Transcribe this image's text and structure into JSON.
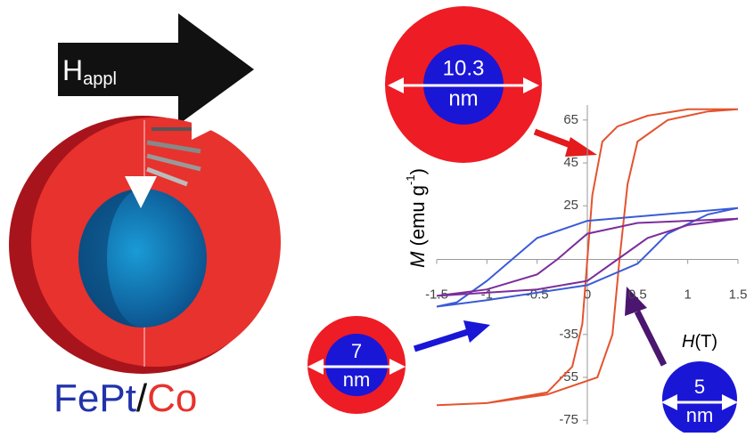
{
  "illustration": {
    "field_symbol": "H",
    "field_subscript": "appl",
    "core_material": "FePt",
    "separator": "/",
    "shell_material": "Co",
    "circles": [
      {
        "size": "10.3",
        "unit": "nm"
      },
      {
        "size": "7",
        "unit": "nm"
      },
      {
        "size": "5",
        "unit": "nm"
      }
    ]
  },
  "chart_data": {
    "type": "line",
    "y_label": {
      "symbol": "M",
      "text": "(emu g",
      "exponent": "-1",
      "close": ")"
    },
    "x_label": {
      "symbol": "H",
      "text": "(T)"
    },
    "xlim": [
      -1.5,
      1.5
    ],
    "xticks": [
      -1.5,
      -1,
      -0.5,
      0,
      0.5,
      1,
      1.5
    ],
    "ylim": [
      -77,
      72
    ],
    "yticks": [
      -75,
      -55,
      -35,
      25,
      45,
      65
    ],
    "series": [
      {
        "color": "#e4532f",
        "x": [
          1.5,
          1.0,
          0.6,
          0.3,
          0.15,
          0.05,
          0,
          -0.05,
          -0.15,
          -0.4,
          -1,
          -1.5,
          -1.5,
          -1,
          -0.4,
          0.1,
          0.25,
          0.32,
          0.4,
          0.5,
          0.8,
          1.2,
          1.5
        ],
        "values": [
          70,
          70,
          67,
          62,
          55,
          30,
          0,
          -30,
          -50,
          -62,
          -67,
          -68,
          -68,
          -67,
          -63,
          -55,
          -35,
          0,
          35,
          55,
          65,
          69,
          70
        ]
      },
      {
        "color": "#3a5bd6",
        "x": [
          1.5,
          0,
          -0.5,
          -1,
          -1.3,
          -1.5,
          -1.5,
          -1,
          0,
          0.5,
          0.8,
          1.2,
          1.5
        ],
        "values": [
          24,
          18,
          10,
          -10,
          -20,
          -22,
          -22,
          -19,
          -12,
          -2,
          12,
          21,
          24
        ]
      },
      {
        "color": "#7b2d9b",
        "x": [
          1.5,
          0.5,
          0,
          -0.3,
          -0.5,
          -1,
          -1.5,
          -1.5,
          -0.5,
          0,
          0.3,
          0.6,
          1,
          1.5
        ],
        "values": [
          19,
          17,
          12,
          0,
          -7,
          -14,
          -17,
          -17,
          -14,
          -10,
          0,
          10,
          16,
          19
        ]
      }
    ]
  }
}
